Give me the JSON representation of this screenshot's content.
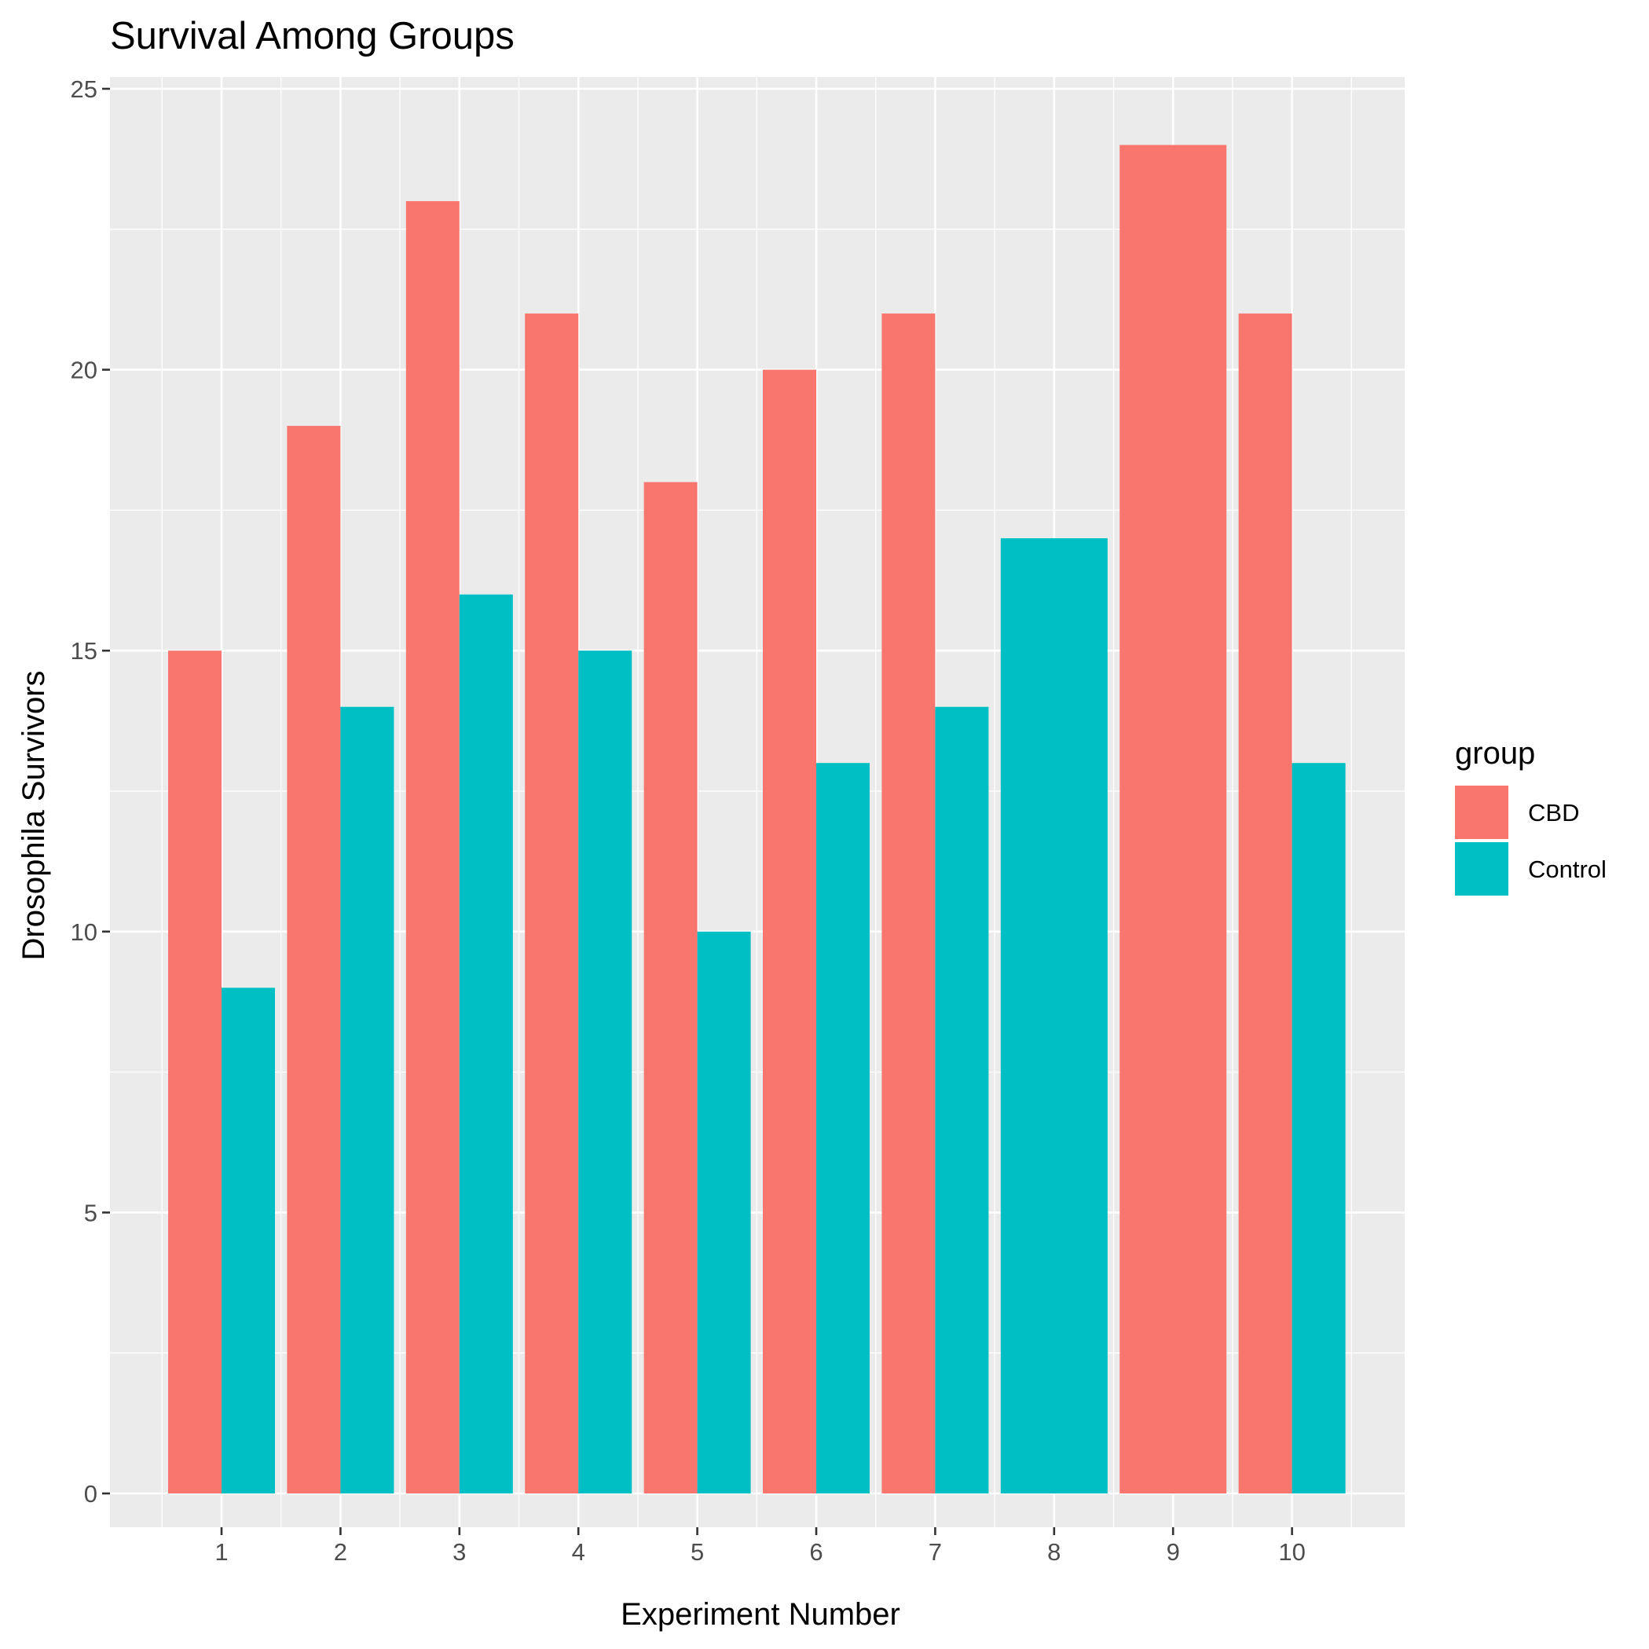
{
  "chart_data": {
    "type": "bar",
    "title": "Survival Among Groups",
    "xlabel": "Experiment Number",
    "ylabel": "Drosophila Survivors",
    "categories": [
      "1",
      "2",
      "3",
      "4",
      "5",
      "6",
      "7",
      "8",
      "9",
      "10"
    ],
    "yticks": [
      "0",
      "5",
      "10",
      "15",
      "20",
      "25"
    ],
    "ylim": [
      -1.2,
      25.2
    ],
    "grid": true,
    "legend": {
      "title": "group",
      "placement": "right",
      "entries": [
        "CBD",
        "Control"
      ]
    },
    "series": [
      {
        "name": "CBD",
        "color": "#F8766D",
        "values": [
          15,
          19,
          23,
          21,
          18,
          20,
          21,
          null,
          24,
          21
        ]
      },
      {
        "name": "Control",
        "color": "#00BFC4",
        "values": [
          9,
          14,
          16,
          15,
          10,
          13,
          14,
          17,
          null,
          13
        ]
      }
    ],
    "panel_color": "#EBEBEB",
    "grid_color": "#FFFFFF"
  }
}
